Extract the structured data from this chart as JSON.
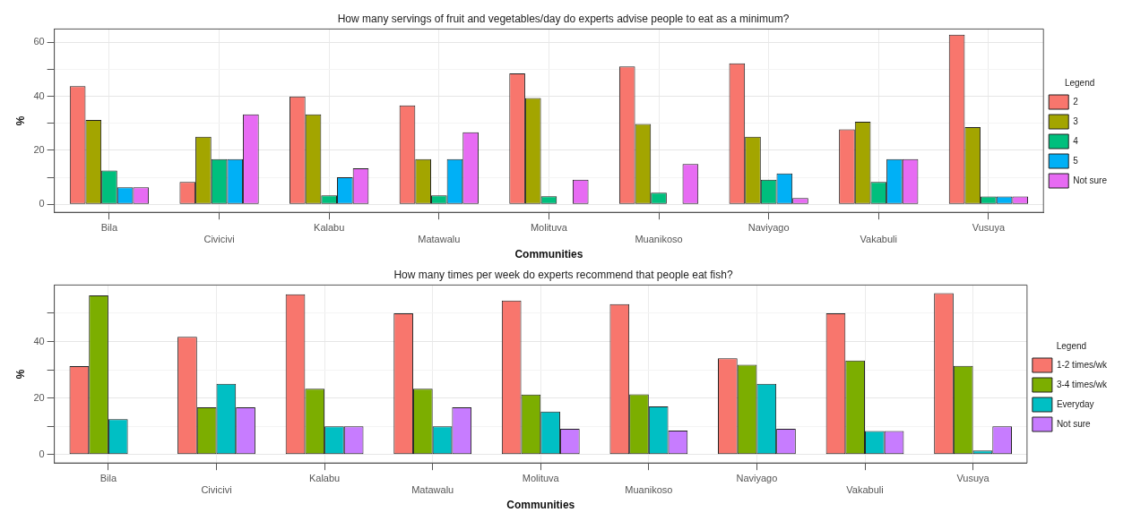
{
  "chart_data": [
    {
      "type": "bar",
      "title": "How many servings of fruit and vegetables/day do experts advise people to eat as a minimum?",
      "xlabel": "Communities",
      "ylabel": "%",
      "legend_title": "Legend",
      "legend": "right",
      "grid": true,
      "categories": [
        "Bila",
        "Civicivi",
        "Kalabu",
        "Matawalu",
        "Molituva",
        "Muanikoso",
        "Naviyago",
        "Vakabuli",
        "Vusuya"
      ],
      "ylim": [
        -3,
        65
      ],
      "yticks": [
        0,
        {
          "value": 10,
          "label": null
        },
        20,
        {
          "value": 30,
          "label": null
        },
        40,
        {
          "value": 50,
          "label": null
        },
        60
      ],
      "series": [
        {
          "name": "2",
          "color": "#f8766d",
          "values": [
            43.8,
            8.3,
            40,
            36.7,
            48.5,
            51.1,
            52.3,
            27.8,
            62.9
          ]
        },
        {
          "name": "3",
          "color": "#a3a500",
          "values": [
            31.3,
            25,
            33.3,
            16.7,
            39.4,
            29.8,
            25,
            30.6,
            28.6
          ]
        },
        {
          "name": "4",
          "color": "#00bf7d",
          "values": [
            12.5,
            16.7,
            3.3,
            3.3,
            3,
            4.3,
            9.1,
            8.3,
            2.9
          ]
        },
        {
          "name": "5",
          "color": "#00b0f6",
          "values": [
            6.3,
            16.7,
            10,
            16.7,
            0,
            0,
            11.4,
            16.7,
            2.9
          ]
        },
        {
          "name": "Not sure",
          "color": "#e76bf3",
          "values": [
            6.3,
            33.3,
            13.3,
            26.7,
            9.1,
            14.9,
            2.3,
            16.7,
            2.9
          ]
        }
      ]
    },
    {
      "type": "bar",
      "title": "How many times per week do experts recommend that people eat fish?",
      "xlabel": "Communities",
      "ylabel": "%",
      "legend_title": "Legend",
      "legend": "right",
      "grid": true,
      "categories": [
        "Bila",
        "Civicivi",
        "Kalabu",
        "Matawalu",
        "Molituva",
        "Muanikoso",
        "Naviyago",
        "Vakabuli",
        "Vusuya"
      ],
      "ylim": [
        -3,
        60
      ],
      "yticks": [
        0,
        {
          "value": 10,
          "label": null
        },
        20,
        {
          "value": 30,
          "label": null
        },
        40,
        {
          "value": 50,
          "label": null
        }
      ],
      "series": [
        {
          "name": "1-2 times/wk",
          "color": "#f8766d",
          "values": [
            31.3,
            41.7,
            56.7,
            50,
            54.5,
            53.2,
            34.1,
            50,
            57.1
          ]
        },
        {
          "name": "3-4 times/wk",
          "color": "#7cae00",
          "values": [
            56.3,
            16.7,
            23.3,
            23.3,
            21.2,
            21.3,
            31.8,
            33.3,
            31.4
          ]
        },
        {
          "name": "Everyday",
          "color": "#00bfc4",
          "values": [
            12.5,
            25,
            10,
            10,
            15.2,
            17,
            25,
            8.3,
            1.4
          ]
        },
        {
          "name": "Not sure",
          "color": "#c77cff",
          "values": [
            0,
            16.7,
            10,
            16.7,
            9.1,
            8.5,
            9.1,
            8.3,
            10
          ]
        }
      ]
    }
  ]
}
